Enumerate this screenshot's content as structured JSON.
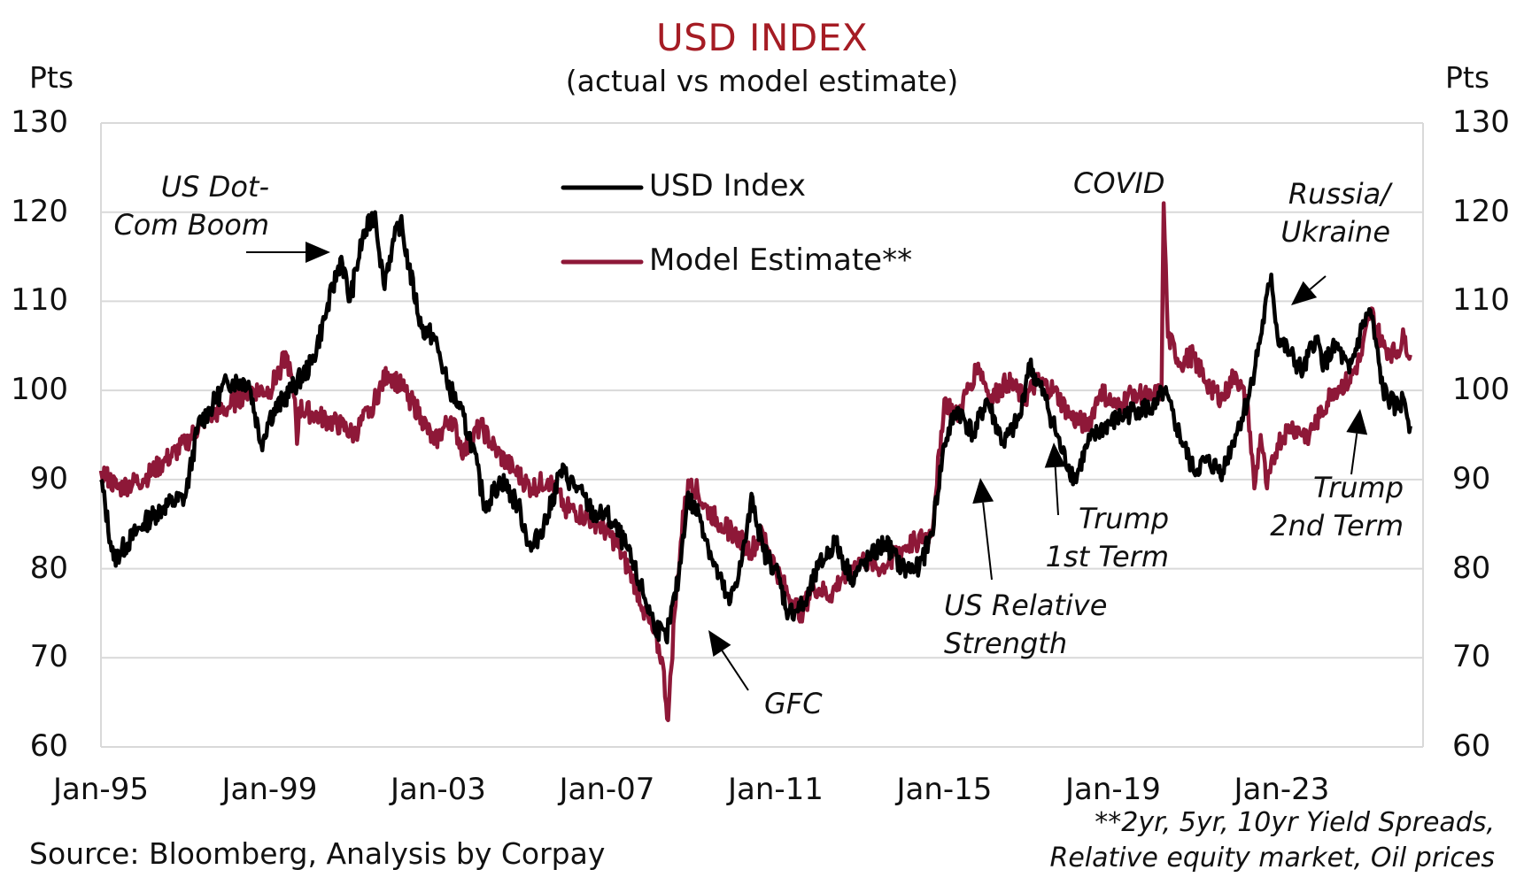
{
  "chart_data": {
    "type": "line",
    "title": "USD INDEX",
    "subtitle": "(actual vs model estimate)",
    "ylabel_left": "Pts",
    "ylabel_right": "Pts",
    "ylim": [
      60,
      130
    ],
    "yticks": [
      60,
      70,
      80,
      90,
      100,
      110,
      120,
      130
    ],
    "yticks_labels": [
      "60",
      "70",
      "80",
      "90",
      "100",
      "110",
      "120",
      "130"
    ],
    "xlim": [
      1995.0,
      2026.2
    ],
    "xticks": [
      1995,
      1999,
      2003,
      2007,
      2011,
      2015,
      2019,
      2023
    ],
    "xticks_labels": [
      "Jan-95",
      "Jan-99",
      "Jan-03",
      "Jan-07",
      "Jan-11",
      "Jan-15",
      "Jan-19",
      "Jan-23"
    ],
    "grid": true,
    "legend_position": "top-center",
    "series": [
      {
        "name": "USD Index",
        "color": "#000000",
        "x": [
          1995.0,
          1995.3,
          1996.0,
          1996.5,
          1997.0,
          1997.3,
          1997.6,
          1998.0,
          1998.5,
          1998.8,
          1999.0,
          1999.5,
          2000.0,
          2000.3,
          2000.7,
          2000.9,
          2001.2,
          2001.5,
          2001.7,
          2001.9,
          2002.1,
          2002.3,
          2002.6,
          2002.9,
          2003.2,
          2003.5,
          2003.8,
          2004.1,
          2004.5,
          2004.9,
          2005.2,
          2005.6,
          2005.9,
          2006.3,
          2006.7,
          2007.0,
          2007.4,
          2007.8,
          2008.1,
          2008.4,
          2008.7,
          2008.9,
          2009.2,
          2009.5,
          2009.9,
          2010.2,
          2010.45,
          2010.7,
          2011.0,
          2011.3,
          2011.7,
          2012.0,
          2012.4,
          2012.8,
          2013.2,
          2013.6,
          2014.0,
          2014.4,
          2014.7,
          2015.0,
          2015.3,
          2015.7,
          2016.0,
          2016.4,
          2016.8,
          2017.0,
          2017.4,
          2017.8,
          2018.1,
          2018.4,
          2018.8,
          2019.2,
          2019.6,
          2020.0,
          2020.2,
          2020.5,
          2020.9,
          2021.2,
          2021.6,
          2021.9,
          2022.2,
          2022.5,
          2022.75,
          2022.9,
          2023.2,
          2023.5,
          2023.8,
          2024.0,
          2024.3,
          2024.6,
          2024.9,
          2025.1,
          2025.4,
          2025.7,
          2025.9,
          2026.05
        ],
        "values": [
          90,
          81,
          85,
          87,
          88,
          96,
          98,
          101,
          101,
          94,
          97,
          100,
          103,
          108,
          115,
          110,
          117,
          120,
          112,
          116,
          119,
          114,
          107,
          106,
          101,
          98,
          94,
          87,
          90,
          87,
          82,
          86,
          91,
          89,
          86,
          86,
          83,
          78,
          74,
          72,
          79,
          88,
          86,
          81,
          76,
          81,
          88,
          82,
          80,
          75,
          76,
          80,
          83,
          79,
          81,
          83,
          80,
          80,
          84,
          94,
          98,
          95,
          99,
          94,
          97,
          103,
          99,
          93,
          90,
          94,
          96,
          97,
          98,
          98,
          100,
          96,
          91,
          92,
          91,
          95,
          99,
          106,
          113,
          106,
          104,
          102,
          106,
          103,
          105,
          102,
          107,
          109,
          100,
          98,
          99,
          96
        ]
      },
      {
        "name": "Model Estimate**",
        "color": "#8E1838",
        "x": [
          1995.0,
          1995.4,
          1996.0,
          1996.5,
          1997.0,
          1997.5,
          1998.0,
          1998.5,
          1999.0,
          1999.4,
          1999.6,
          1999.65,
          1999.7,
          2000.2,
          2000.7,
          2001.0,
          2001.4,
          2001.8,
          2002.2,
          2002.6,
          2002.9,
          2003.3,
          2003.6,
          2004.0,
          2004.4,
          2004.8,
          2005.2,
          2005.6,
          2006.0,
          2006.4,
          2006.8,
          2007.2,
          2007.6,
          2008.0,
          2008.3,
          2008.45,
          2008.6,
          2008.85,
          2009.0,
          2009.3,
          2009.7,
          2010.0,
          2010.4,
          2010.7,
          2011.0,
          2011.3,
          2011.6,
          2011.9,
          2012.3,
          2012.7,
          2013.1,
          2013.5,
          2013.9,
          2014.3,
          2014.7,
          2015.0,
          2015.3,
          2015.8,
          2016.1,
          2016.5,
          2016.9,
          2017.2,
          2017.6,
          2018.0,
          2018.4,
          2018.7,
          2019.1,
          2019.5,
          2019.9,
          2020.15,
          2020.2,
          2020.3,
          2020.6,
          2020.9,
          2021.2,
          2021.6,
          2021.9,
          2022.2,
          2022.35,
          2022.5,
          2022.65,
          2022.9,
          2023.2,
          2023.6,
          2023.9,
          2024.2,
          2024.6,
          2024.9,
          2025.1,
          2025.4,
          2025.7,
          2025.9,
          2026.05
        ],
        "values": [
          91,
          89,
          90,
          92,
          94,
          97,
          98,
          100,
          100,
          104,
          99,
          94,
          98,
          97,
          96,
          95,
          98,
          102,
          100,
          97,
          94,
          97,
          93,
          96,
          93,
          91,
          89,
          90,
          87,
          86,
          85,
          83,
          79,
          74,
          70,
          63,
          75,
          88,
          90,
          87,
          85,
          84,
          82,
          84,
          80,
          77,
          75,
          78,
          77,
          80,
          81,
          80,
          82,
          83,
          84,
          99,
          97,
          103,
          99,
          101,
          99,
          101,
          100,
          97,
          96,
          100,
          98,
          100,
          99,
          100,
          121,
          106,
          103,
          104,
          101,
          99,
          102,
          98,
          89,
          95,
          89,
          94,
          96,
          95,
          97,
          100,
          101,
          104,
          109,
          105,
          104,
          106,
          104
        ]
      }
    ],
    "annotations": [
      {
        "lines": [
          "US Dot-",
          "Com Boom"
        ]
      },
      {
        "lines": [
          "COVID"
        ]
      },
      {
        "lines": [
          "Russia/",
          "Ukraine"
        ]
      },
      {
        "lines": [
          "GFC"
        ]
      },
      {
        "lines": [
          "US Relative",
          "Strength"
        ]
      },
      {
        "lines": [
          "Trump",
          "1st Term"
        ]
      },
      {
        "lines": [
          "Trump",
          "2nd Term"
        ]
      }
    ],
    "source": "Source: Bloomberg, Analysis by Corpay",
    "footnote": [
      "**2yr, 5yr, 10yr Yield Spreads,",
      "Relative equity market, Oil prices"
    ]
  }
}
